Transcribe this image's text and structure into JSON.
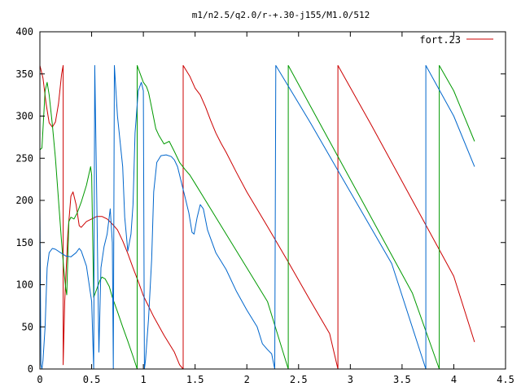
{
  "chart_data": {
    "type": "line",
    "title": "m1/n2.5/q2.0/r-+.30-j155/M1.0/512",
    "xlabel": "",
    "ylabel": "",
    "xlim": [
      0,
      4.5
    ],
    "ylim": [
      0,
      400
    ],
    "grid": false,
    "legend_placement": "top-right",
    "x_ticks": [
      {
        "value": 0,
        "label": "0"
      },
      {
        "value": 0.5,
        "label": "0.5"
      },
      {
        "value": 1,
        "label": "1"
      },
      {
        "value": 1.5,
        "label": "1.5"
      },
      {
        "value": 2,
        "label": "2"
      },
      {
        "value": 2.5,
        "label": "2.5"
      },
      {
        "value": 3,
        "label": "3"
      },
      {
        "value": 3.5,
        "label": "3.5"
      },
      {
        "value": 4,
        "label": "4"
      },
      {
        "value": 4.5,
        "label": "4.5"
      }
    ],
    "y_ticks": [
      {
        "value": 0,
        "label": "0"
      },
      {
        "value": 50,
        "label": "50"
      },
      {
        "value": 100,
        "label": "100"
      },
      {
        "value": 150,
        "label": "150"
      },
      {
        "value": 200,
        "label": "200"
      },
      {
        "value": 250,
        "label": "250"
      },
      {
        "value": 300,
        "label": "300"
      },
      {
        "value": 350,
        "label": "350"
      },
      {
        "value": 400,
        "label": "400"
      }
    ],
    "series": [
      {
        "name": "fort.23",
        "color": "#cc0000",
        "points": [
          [
            0.0,
            360
          ],
          [
            0.03,
            345
          ],
          [
            0.06,
            315
          ],
          [
            0.09,
            292
          ],
          [
            0.12,
            287
          ],
          [
            0.15,
            293
          ],
          [
            0.18,
            315
          ],
          [
            0.21,
            350
          ],
          [
            0.225,
            360
          ],
          [
            0.225,
            5
          ],
          [
            0.24,
            80
          ],
          [
            0.27,
            160
          ],
          [
            0.3,
            205
          ],
          [
            0.32,
            210
          ],
          [
            0.35,
            195
          ],
          [
            0.38,
            170
          ],
          [
            0.4,
            168
          ],
          [
            0.45,
            175
          ],
          [
            0.5,
            178
          ],
          [
            0.55,
            181
          ],
          [
            0.6,
            181
          ],
          [
            0.65,
            178
          ],
          [
            0.7,
            172
          ],
          [
            0.75,
            165
          ],
          [
            0.8,
            152
          ],
          [
            0.85,
            137
          ],
          [
            0.9,
            120
          ],
          [
            0.95,
            104
          ],
          [
            1.0,
            87
          ],
          [
            1.1,
            62
          ],
          [
            1.2,
            40
          ],
          [
            1.3,
            20
          ],
          [
            1.35,
            5
          ],
          [
            1.385,
            0
          ],
          [
            1.385,
            360
          ],
          [
            1.45,
            347
          ],
          [
            1.5,
            333
          ],
          [
            1.55,
            325
          ],
          [
            1.6,
            311
          ],
          [
            1.65,
            295
          ],
          [
            1.7,
            280
          ],
          [
            1.75,
            268
          ],
          [
            1.8,
            257
          ],
          [
            1.9,
            233
          ],
          [
            2.0,
            210
          ],
          [
            2.2,
            169
          ],
          [
            2.4,
            127
          ],
          [
            2.6,
            84
          ],
          [
            2.8,
            42
          ],
          [
            2.88,
            0
          ],
          [
            2.88,
            360
          ],
          [
            3.2,
            290
          ],
          [
            3.6,
            200
          ],
          [
            4.0,
            110
          ],
          [
            4.2,
            32
          ]
        ]
      },
      {
        "name": "",
        "color": "#009900",
        "points": [
          [
            0.0,
            0
          ],
          [
            0.0,
            260
          ],
          [
            0.02,
            262
          ],
          [
            0.05,
            330
          ],
          [
            0.07,
            340
          ],
          [
            0.09,
            325
          ],
          [
            0.12,
            290
          ],
          [
            0.15,
            250
          ],
          [
            0.18,
            200
          ],
          [
            0.21,
            150
          ],
          [
            0.23,
            120
          ],
          [
            0.25,
            95
          ],
          [
            0.26,
            88
          ],
          [
            0.28,
            175
          ],
          [
            0.3,
            180
          ],
          [
            0.33,
            178
          ],
          [
            0.36,
            185
          ],
          [
            0.4,
            198
          ],
          [
            0.45,
            218
          ],
          [
            0.49,
            240
          ],
          [
            0.5,
            230
          ],
          [
            0.52,
            85
          ],
          [
            0.55,
            95
          ],
          [
            0.58,
            105
          ],
          [
            0.6,
            109
          ],
          [
            0.63,
            107
          ],
          [
            0.67,
            98
          ],
          [
            0.7,
            85
          ],
          [
            0.75,
            68
          ],
          [
            0.8,
            50
          ],
          [
            0.85,
            33
          ],
          [
            0.9,
            15
          ],
          [
            0.94,
            0
          ],
          [
            0.94,
            360
          ],
          [
            0.97,
            350
          ],
          [
            1.0,
            340
          ],
          [
            1.03,
            335
          ],
          [
            1.05,
            328
          ],
          [
            1.08,
            310
          ],
          [
            1.12,
            285
          ],
          [
            1.15,
            277
          ],
          [
            1.2,
            267
          ],
          [
            1.25,
            270
          ],
          [
            1.3,
            258
          ],
          [
            1.35,
            245
          ],
          [
            1.4,
            237
          ],
          [
            1.45,
            230
          ],
          [
            1.5,
            220
          ],
          [
            1.6,
            200
          ],
          [
            1.8,
            160
          ],
          [
            2.0,
            120
          ],
          [
            2.2,
            80
          ],
          [
            2.4,
            0
          ],
          [
            2.4,
            360
          ],
          [
            2.8,
            270
          ],
          [
            3.2,
            180
          ],
          [
            3.6,
            90
          ],
          [
            3.86,
            0
          ],
          [
            3.86,
            360
          ],
          [
            4.0,
            330
          ],
          [
            4.2,
            270
          ]
        ]
      },
      {
        "name": "",
        "color": "#0066cc",
        "points": [
          [
            0.0,
            0
          ],
          [
            0.0,
            190
          ],
          [
            0.01,
            5
          ],
          [
            0.02,
            0
          ],
          [
            0.03,
            10
          ],
          [
            0.05,
            50
          ],
          [
            0.07,
            120
          ],
          [
            0.09,
            138
          ],
          [
            0.12,
            143
          ],
          [
            0.15,
            142
          ],
          [
            0.2,
            138
          ],
          [
            0.25,
            134
          ],
          [
            0.3,
            133
          ],
          [
            0.35,
            138
          ],
          [
            0.38,
            143
          ],
          [
            0.4,
            140
          ],
          [
            0.45,
            122
          ],
          [
            0.5,
            80
          ],
          [
            0.52,
            0
          ],
          [
            0.53,
            360
          ],
          [
            0.55,
            200
          ],
          [
            0.57,
            20
          ],
          [
            0.59,
            120
          ],
          [
            0.62,
            145
          ],
          [
            0.65,
            160
          ],
          [
            0.68,
            190
          ],
          [
            0.7,
            150
          ],
          [
            0.71,
            0
          ],
          [
            0.72,
            360
          ],
          [
            0.75,
            300
          ],
          [
            0.8,
            240
          ],
          [
            0.82,
            180
          ],
          [
            0.85,
            140
          ],
          [
            0.88,
            160
          ],
          [
            0.9,
            195
          ],
          [
            0.92,
            280
          ],
          [
            0.95,
            330
          ],
          [
            0.98,
            340
          ],
          [
            1.0,
            330
          ],
          [
            1.01,
            0
          ],
          [
            1.02,
            10
          ],
          [
            1.05,
            60
          ],
          [
            1.08,
            130
          ],
          [
            1.1,
            210
          ],
          [
            1.13,
            245
          ],
          [
            1.17,
            253
          ],
          [
            1.22,
            254
          ],
          [
            1.27,
            252
          ],
          [
            1.3,
            248
          ],
          [
            1.33,
            240
          ],
          [
            1.36,
            225
          ],
          [
            1.4,
            205
          ],
          [
            1.44,
            185
          ],
          [
            1.47,
            162
          ],
          [
            1.49,
            160
          ],
          [
            1.52,
            180
          ],
          [
            1.55,
            195
          ],
          [
            1.58,
            190
          ],
          [
            1.62,
            165
          ],
          [
            1.7,
            138
          ],
          [
            1.8,
            118
          ],
          [
            1.9,
            92
          ],
          [
            2.0,
            70
          ],
          [
            2.1,
            50
          ],
          [
            2.15,
            30
          ],
          [
            2.2,
            23
          ],
          [
            2.24,
            18
          ],
          [
            2.27,
            0
          ],
          [
            2.28,
            360
          ],
          [
            2.6,
            295
          ],
          [
            3.0,
            210
          ],
          [
            3.4,
            125
          ],
          [
            3.73,
            0
          ],
          [
            3.73,
            360
          ],
          [
            4.0,
            300
          ],
          [
            4.2,
            240
          ]
        ]
      }
    ]
  }
}
